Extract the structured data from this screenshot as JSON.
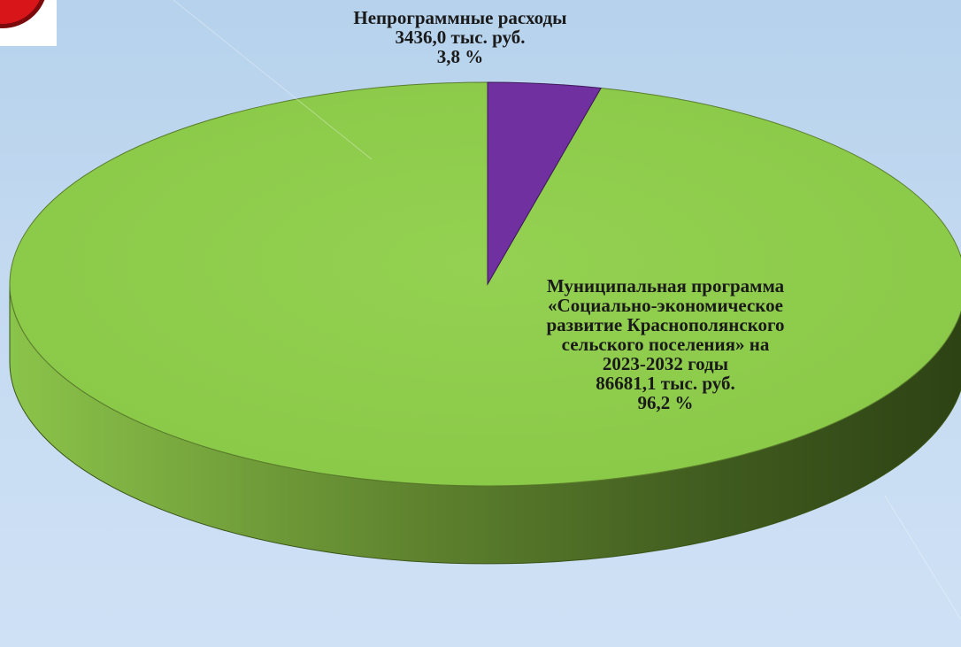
{
  "chart_data": {
    "type": "pie",
    "style": "3d",
    "slices": [
      {
        "label": "Муниципальная программа «Социально-экономическое развитие Краснополянского сельского поселения» на 2023-2032 годы",
        "value": 86681.1,
        "value_text": "86681,1 тыс. руб.",
        "percent_text": "96,2 %",
        "color": "#92d050",
        "side_color": "#4f6e26"
      },
      {
        "label": "Непрограммные расходы",
        "value": 3436.0,
        "value_text": "3436,0 тыс. руб.",
        "percent_text": "3,8 %",
        "color": "#7030a0",
        "side_color": "#3d1859"
      }
    ]
  },
  "labels": {
    "large_lines": [
      "Муниципальная программа",
      "«Социально-экономическое",
      "развитие Краснополянского",
      "сельского поселения» на",
      "2023-2032 годы"
    ]
  },
  "colors": {
    "background": "#c4daf1",
    "badge_red": "#d8161a"
  }
}
